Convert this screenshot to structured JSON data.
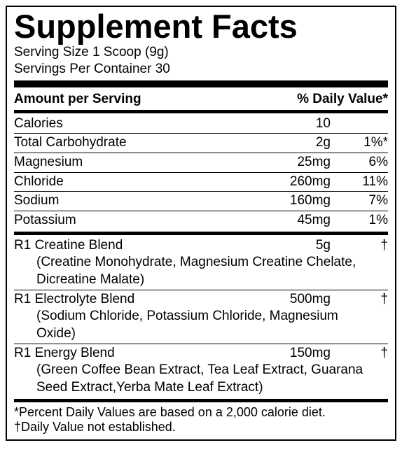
{
  "title": "Supplement Facts",
  "serving_size": "Serving Size 1 Scoop (9g)",
  "servings_per_container": "Servings Per Container 30",
  "header": {
    "amount_label": "Amount per Serving",
    "dv_label": "% Daily Value*"
  },
  "nutrients": [
    {
      "name": "Calories",
      "amount": "10",
      "dv": ""
    },
    {
      "name": "Total Carbohydrate",
      "amount": "2g",
      "dv": "1%*"
    },
    {
      "name": "Magnesium",
      "amount": "25mg",
      "dv": "6%"
    },
    {
      "name": "Chloride",
      "amount": "260mg",
      "dv": "11%"
    },
    {
      "name": "Sodium",
      "amount": "160mg",
      "dv": "7%"
    },
    {
      "name": "Potassium",
      "amount": "45mg",
      "dv": "1%"
    }
  ],
  "blends": [
    {
      "name": "R1 Creatine Blend",
      "amount": "5g",
      "dv": "†",
      "desc": "(Creatine Monohydrate, Magnesium Creatine Chelate, Dicreatine Malate)"
    },
    {
      "name": "R1 Electrolyte Blend",
      "amount": "500mg",
      "dv": "†",
      "desc": "(Sodium Chloride, Potassium Chloride, Magnesium Oxide)"
    },
    {
      "name": "R1 Energy Blend",
      "amount": "150mg",
      "dv": "†",
      "desc": "(Green Coffee Bean Extract, Tea Leaf Extract, Guarana Seed Extract,Yerba Mate Leaf Extract)"
    }
  ],
  "footnotes": {
    "line1": "*Percent Daily Values are based on a 2,000 calorie diet.",
    "line2": "†Daily Value not established."
  }
}
